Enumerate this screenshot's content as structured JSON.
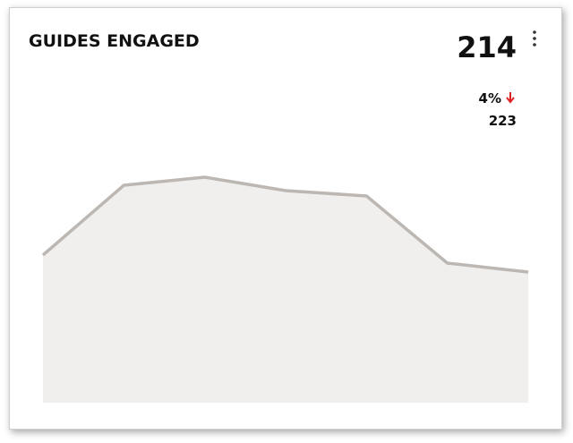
{
  "header": {
    "title": "GUIDES ENGAGED"
  },
  "kpi": {
    "value": 214,
    "change": "4%",
    "previous": 223
  },
  "chart_data": {
    "type": "area",
    "values": [
      33,
      48.6,
      50.4,
      47.4,
      46.2,
      31.2,
      29.2
    ],
    "ylim": [
      0,
      60
    ],
    "color": "#bcb7b2",
    "fill": "#f0efed"
  }
}
